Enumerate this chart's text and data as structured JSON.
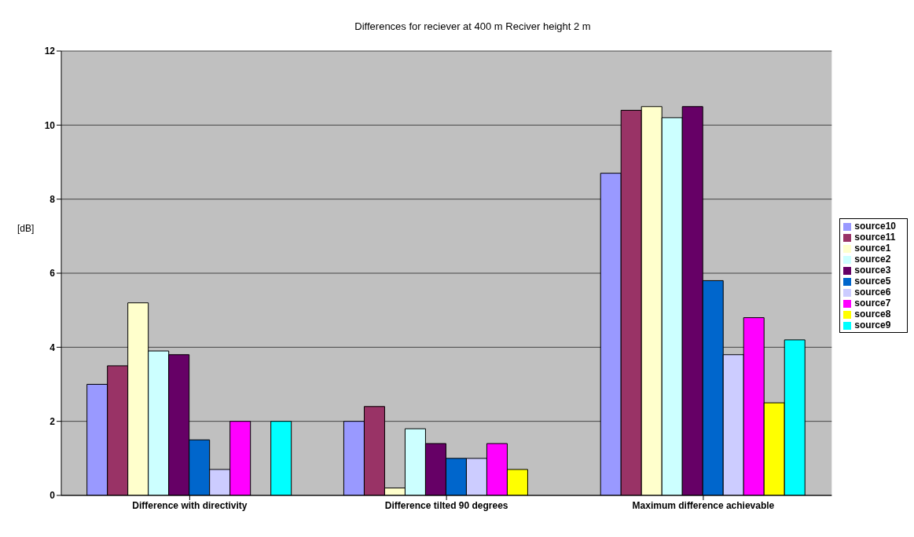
{
  "chart_data": {
    "type": "bar",
    "title": "Differences for reciever at 400 m Reciver height 2 m",
    "ylabel": "[dB]",
    "categories": [
      "Difference with directivity",
      "Difference tilted 90 degrees",
      "Maximum difference achievable"
    ],
    "series": [
      {
        "name": "source10",
        "color": "#9999ff",
        "values": [
          3.0,
          2.0,
          8.7
        ]
      },
      {
        "name": "source11",
        "color": "#993366",
        "values": [
          3.5,
          2.4,
          10.4
        ]
      },
      {
        "name": "source1",
        "color": "#ffffcc",
        "values": [
          5.2,
          0.2,
          10.5
        ]
      },
      {
        "name": "source2",
        "color": "#ccffff",
        "values": [
          3.9,
          1.8,
          10.2
        ]
      },
      {
        "name": "source3",
        "color": "#660066",
        "values": [
          3.8,
          1.4,
          10.5
        ]
      },
      {
        "name": "source5",
        "color": "#0066cc",
        "values": [
          1.5,
          1.0,
          5.8
        ]
      },
      {
        "name": "source6",
        "color": "#ccccff",
        "values": [
          0.7,
          1.0,
          3.8
        ]
      },
      {
        "name": "source7",
        "color": "#ff00ff",
        "values": [
          2.0,
          1.4,
          4.8
        ]
      },
      {
        "name": "source8",
        "color": "#ffff00",
        "values": [
          null,
          0.7,
          2.5
        ]
      },
      {
        "name": "source9",
        "color": "#00ffff",
        "values": [
          2.0,
          null,
          4.2
        ]
      }
    ],
    "ylim": [
      0,
      12
    ],
    "yticks": [
      0,
      2,
      4,
      6,
      8,
      10,
      12
    ],
    "grid": "y",
    "legend": "right"
  }
}
